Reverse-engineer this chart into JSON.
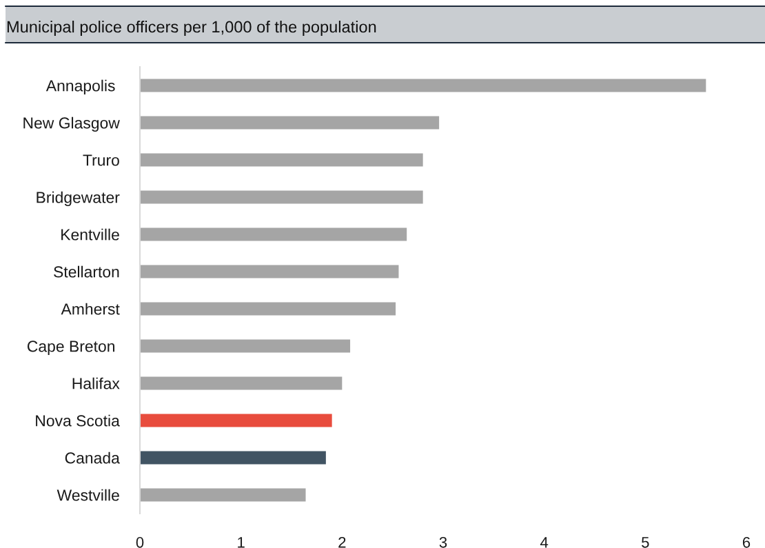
{
  "chart_data": {
    "type": "bar",
    "orientation": "horizontal",
    "title": "Municipal police officers per 1,000 of the population",
    "categories": [
      "Annapolis ",
      "New Glasgow",
      "Truro",
      "Bridgewater",
      "Kentville",
      "Stellarton",
      "Amherst",
      "Cape Breton ",
      "Halifax",
      "Nova Scotia",
      "Canada",
      "Westville"
    ],
    "values": [
      5.6,
      2.96,
      2.8,
      2.8,
      2.64,
      2.56,
      2.53,
      2.08,
      2.0,
      1.9,
      1.84,
      1.64
    ],
    "colors": [
      "#a5a5a5",
      "#a5a5a5",
      "#a5a5a5",
      "#a5a5a5",
      "#a5a5a5",
      "#a5a5a5",
      "#a5a5a5",
      "#a5a5a5",
      "#a5a5a5",
      "#e84c3d",
      "#415463",
      "#a5a5a5"
    ],
    "xlim": [
      0,
      6
    ],
    "xticks": [
      0,
      1,
      2,
      3,
      4,
      5,
      6
    ]
  }
}
